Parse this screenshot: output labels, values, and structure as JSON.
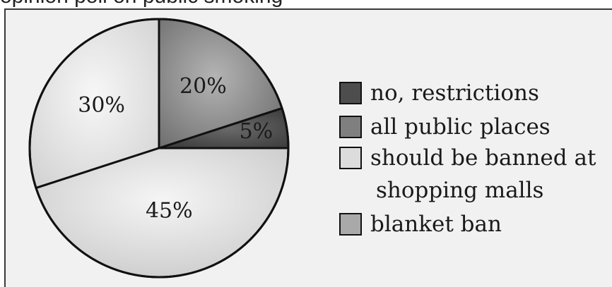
{
  "header": {
    "text": "opinion poll on public smoking"
  },
  "chart_data": {
    "type": "pie",
    "title": "",
    "start_angle_deg": 0,
    "direction": "counterclockwise",
    "slices": [
      {
        "label": "no, restrictions",
        "value": 5,
        "value_label": "5%",
        "color": "#5a5a5a"
      },
      {
        "label": "all public places",
        "value": 20,
        "value_label": "20%",
        "color": "#8c8c8c"
      },
      {
        "label": "should be banned at shopping malls",
        "value": 30,
        "value_label": "30%",
        "color": "#e0e0e0"
      },
      {
        "label": "blanket ban",
        "value": 45,
        "value_label": "45%",
        "color": "#d6d6d6"
      }
    ],
    "legend": {
      "placement": "right",
      "entries": [
        {
          "line1": "no, restrictions",
          "color": "#4d4d4d"
        },
        {
          "line1": "all public places",
          "color": "#7f7f7f"
        },
        {
          "line1": "should be banned at",
          "line2": "shopping malls",
          "color": "#dcdcdc"
        },
        {
          "line1": "blanket ban",
          "color": "#a9a9a9"
        }
      ]
    }
  }
}
